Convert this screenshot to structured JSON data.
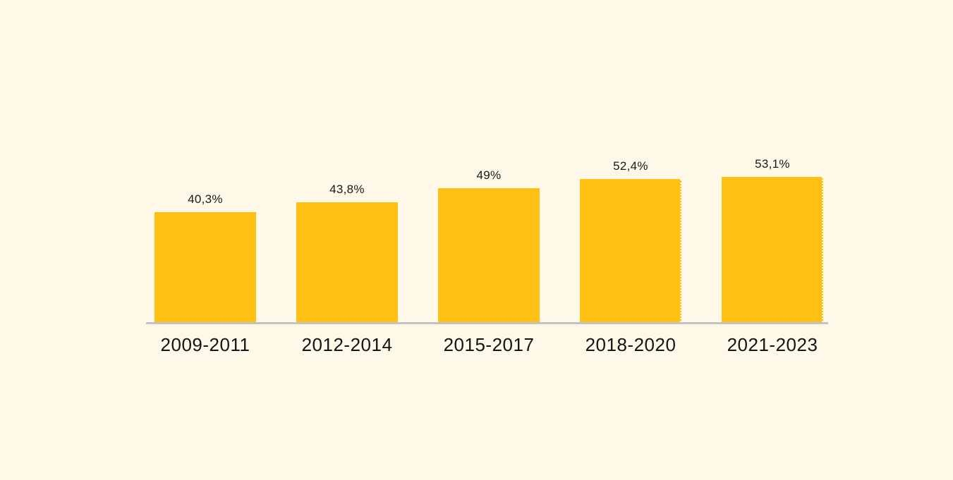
{
  "chart_data": {
    "type": "bar",
    "categories": [
      "2009-2011",
      "2012-2014",
      "2015-2017",
      "2018-2020",
      "2021-2023"
    ],
    "values": [
      40.3,
      43.8,
      49,
      52.4,
      53.1
    ],
    "value_labels": [
      "40,3%",
      "43,8%",
      "49%",
      "52,4%",
      "53,1%"
    ],
    "title": "",
    "xlabel": "",
    "ylabel": "",
    "ylim": [
      0,
      60
    ],
    "grid": false,
    "legend": false,
    "dotted_right_edge_bar_indices": [
      3,
      4
    ],
    "colors": {
      "bar": "#FDC013",
      "background": "#FDF8E8",
      "baseline": "#C3C3C3",
      "value_label_text": "#1A1A1A",
      "category_label_text": "#141414"
    }
  }
}
